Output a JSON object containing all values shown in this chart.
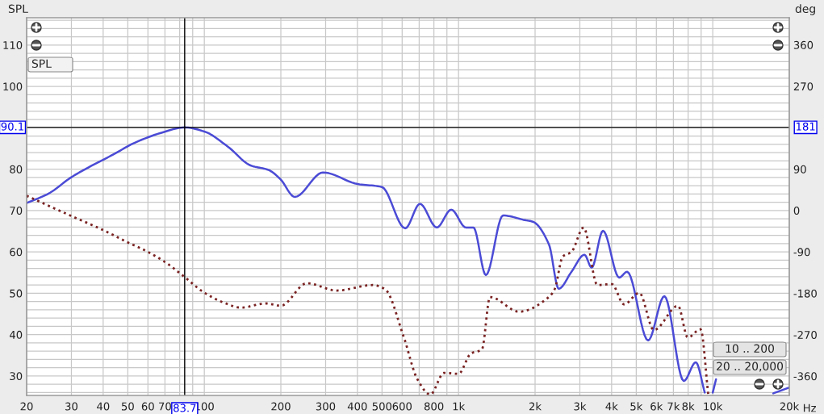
{
  "chart_data": {
    "type": "line",
    "ylabel": "SPL",
    "y2label": "deg",
    "xlabel": "Hz",
    "annotations": [
      "SPL",
      "10 .. 200",
      "20 .. 20,000",
      "181"
    ],
    "log": "x",
    "grid": true,
    "marker": "none",
    "x": [
      20,
      24.4,
      29.9,
      35.2,
      43.7,
      53.3,
      67.9,
      83.7,
      100,
      124,
      152,
      179,
      199,
      227,
      293,
      401,
      499,
      617,
      705,
      821,
      936,
      1069,
      1144,
      1281,
      1496,
      1820,
      1959,
      2268,
      2478,
      2782,
      3127,
      3340,
      3700,
      4285,
      4606,
      5568,
      6451,
      7690,
      8575,
      9300,
      9700,
      10000,
      10300,
      12000,
      13700,
      14400,
      15500,
      17300,
      20000
    ],
    "series": [
      {
        "color": "#4b4bd6",
        "line_style": "solid",
        "values": [
          71.8,
          74.1,
          78.0,
          80.5,
          83.5,
          86.4,
          88.8,
          90.1,
          89.1,
          85.4,
          80.9,
          79.8,
          77.6,
          73.3,
          79.2,
          76.4,
          75.7,
          65.7,
          71.6,
          65.9,
          70.2,
          65.9,
          65.9,
          54.4,
          68.8,
          67.7,
          67.3,
          61.8,
          51.1,
          55.2,
          59.3,
          56.2,
          65.1,
          53.8,
          55.2,
          38.6,
          49.3,
          28.8,
          33.3,
          26,
          null,
          26,
          29.2,
          null,
          null,
          null,
          null,
          25.8,
          27.2
        ]
      },
      {
        "axis": "y2",
        "color": "#7a2222",
        "line_style": "dotted",
        "x": [
          20,
          30,
          39.8,
          49.9,
          60,
          70.5,
          83.4,
          99,
          119,
          139,
          175,
          200,
          253,
          332,
          460,
          514,
          608,
          689,
          774,
          877,
          1000,
          1117,
          1236,
          1330,
          1730,
          2268,
          2388,
          2570,
          2782,
          3104,
          3515,
          4009,
          4477,
          5140,
          5867,
          7300,
          7975,
          8956,
          9600
        ],
        "values": [
          32,
          -12,
          -42,
          -69,
          -90,
          -113,
          -144,
          -177,
          -200,
          -211,
          -202,
          -207,
          -158,
          -174,
          -162,
          -171,
          -274,
          -367,
          -400,
          -353,
          -355,
          -311,
          -302,
          -188,
          -220,
          -188,
          -171,
          -100,
          -90,
          -37,
          -162,
          -160,
          -204,
          -179,
          -260,
          -207,
          -276,
          -258,
          -400
        ]
      }
    ],
    "xlim": [
      20,
      20000
    ],
    "xticks": [
      20,
      30,
      40,
      50,
      60,
      70,
      {
        "value": 80,
        "label": null
      },
      {
        "value": 90,
        "label": null
      },
      100,
      200,
      300,
      400,
      500,
      600,
      {
        "value": 700,
        "label": null
      },
      800,
      {
        "value": 900,
        "label": null
      },
      {
        "value": 1000,
        "label": "1k"
      },
      {
        "value": 2000,
        "label": "2k"
      },
      {
        "value": 3000,
        "label": "3k"
      },
      {
        "value": 4000,
        "label": "4k"
      },
      {
        "value": 5000,
        "label": "5k"
      },
      {
        "value": 6000,
        "label": "6k"
      },
      {
        "value": 7000,
        "label": "7k"
      },
      {
        "value": 8000,
        "label": "8k"
      },
      {
        "value": 9000,
        "label": null
      },
      {
        "value": 10000,
        "label": "10k"
      },
      {
        "value": 20000,
        "label": "20k"
      }
    ],
    "ylim": [
      25.3,
      116.6
    ],
    "yticks": [
      {
        "value": 26,
        "label": null
      },
      {
        "value": 28,
        "label": null
      },
      30,
      {
        "value": 32,
        "label": null
      },
      {
        "value": 34,
        "label": null
      },
      {
        "value": 36,
        "label": null
      },
      {
        "value": 38,
        "label": null
      },
      40,
      {
        "value": 42,
        "label": null
      },
      {
        "value": 44,
        "label": null
      },
      {
        "value": 46,
        "label": null
      },
      {
        "value": 48,
        "label": null
      },
      50,
      {
        "value": 52,
        "label": null
      },
      {
        "value": 54,
        "label": null
      },
      {
        "value": 56,
        "label": null
      },
      {
        "value": 58,
        "label": null
      },
      60,
      {
        "value": 62,
        "label": null
      },
      {
        "value": 64,
        "label": null
      },
      {
        "value": 66,
        "label": null
      },
      {
        "value": 68,
        "label": null
      },
      70,
      {
        "value": 72,
        "label": null
      },
      {
        "value": 74,
        "label": null
      },
      {
        "value": 76,
        "label": null
      },
      {
        "value": 78,
        "label": null
      },
      80,
      {
        "value": 82,
        "label": null
      },
      {
        "value": 84,
        "label": null
      },
      {
        "value": 86,
        "label": null
      },
      {
        "value": 88,
        "label": null
      },
      {
        "value": 90,
        "label": null
      },
      {
        "value": 92,
        "label": null
      },
      {
        "value": 94,
        "label": null
      },
      {
        "value": 96,
        "label": null
      },
      {
        "value": 98,
        "label": null
      },
      100,
      {
        "value": 102,
        "label": null
      },
      {
        "value": 104,
        "label": null
      },
      {
        "value": 106,
        "label": null
      },
      {
        "value": 108,
        "label": null
      },
      110,
      {
        "value": 112,
        "label": null
      },
      {
        "value": 114,
        "label": null
      },
      {
        "value": 116,
        "label": null
      }
    ],
    "y2lim": [
      -402,
      419
    ],
    "y2ticks": [
      -360,
      -270,
      -180,
      -90,
      0,
      90,
      270,
      360
    ],
    "ref_lines": [
      {
        "axis": "x",
        "value": 83.7,
        "label": "83.7",
        "color": "#000000"
      },
      {
        "axis": "y",
        "value": 90.1,
        "label": "90.1",
        "color": "#000000"
      }
    ]
  }
}
